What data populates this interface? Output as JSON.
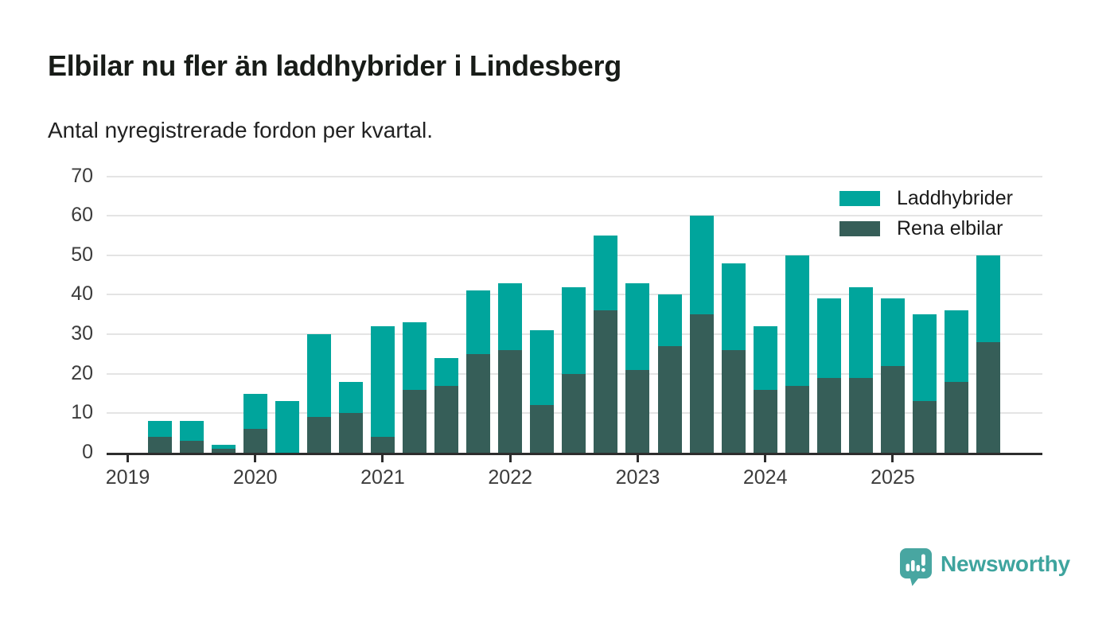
{
  "header": {
    "title": "Elbilar nu fler än laddhybrider i Lindesberg",
    "subtitle": "Antal nyregistrerade fordon per kvartal."
  },
  "chart_data": {
    "type": "bar",
    "stacked": true,
    "categories": [
      "2019 Q1",
      "2019 Q2",
      "2019 Q3",
      "2019 Q4",
      "2020 Q1",
      "2020 Q2",
      "2020 Q3",
      "2020 Q4",
      "2021 Q1",
      "2021 Q2",
      "2021 Q3",
      "2021 Q4",
      "2022 Q1",
      "2022 Q2",
      "2022 Q3",
      "2022 Q4",
      "2023 Q1",
      "2023 Q2",
      "2023 Q3",
      "2023 Q4",
      "2024 Q1",
      "2024 Q2",
      "2024 Q3",
      "2024 Q4",
      "2025 Q1",
      "2025 Q2",
      "2025 Q3",
      "2025 Q4"
    ],
    "series": [
      {
        "name": "Rena elbilar",
        "color": "#365e58",
        "values": [
          0,
          4,
          3,
          1,
          6,
          0,
          9,
          10,
          4,
          16,
          17,
          25,
          26,
          12,
          20,
          36,
          21,
          27,
          35,
          26,
          16,
          17,
          19,
          19,
          22,
          13,
          18,
          28
        ]
      },
      {
        "name": "Laddhybrider",
        "color": "#00a59c",
        "values": [
          0,
          4,
          5,
          1,
          9,
          13,
          21,
          8,
          28,
          17,
          7,
          16,
          17,
          19,
          22,
          19,
          22,
          13,
          25,
          22,
          16,
          33,
          20,
          23,
          17,
          22,
          18,
          22
        ]
      }
    ],
    "totals": [
      0,
      8,
      8,
      2,
      15,
      13,
      30,
      18,
      32,
      33,
      24,
      41,
      43,
      31,
      42,
      55,
      43,
      40,
      60,
      48,
      32,
      50,
      39,
      42,
      39,
      35,
      36,
      50
    ],
    "title": "Elbilar nu fler än laddhybrider i Lindesberg",
    "xlabel": "",
    "ylabel": "",
    "ylim": [
      0,
      70
    ],
    "yticks": [
      0,
      10,
      20,
      30,
      40,
      50,
      60,
      70
    ],
    "year_ticks": [
      "2019",
      "2020",
      "2021",
      "2022",
      "2023",
      "2024",
      "2025"
    ],
    "grid": true,
    "legend_position": "top-right"
  },
  "legend": {
    "items": [
      {
        "label": "Laddhybrider",
        "color": "#00a59c"
      },
      {
        "label": "Rena elbilar",
        "color": "#365e58"
      }
    ]
  },
  "footer": {
    "brand": "Newsworthy",
    "logo_icon": "newsworthy-speech-bubble-chart-icon",
    "brand_color": "#3ea49e",
    "logo_fill": "#48a6a1"
  },
  "colors": {
    "axis": "#2d2d2d",
    "grid": "#e4e4e4",
    "tick_text": "#3c3c3c",
    "title_text": "#181c18"
  }
}
